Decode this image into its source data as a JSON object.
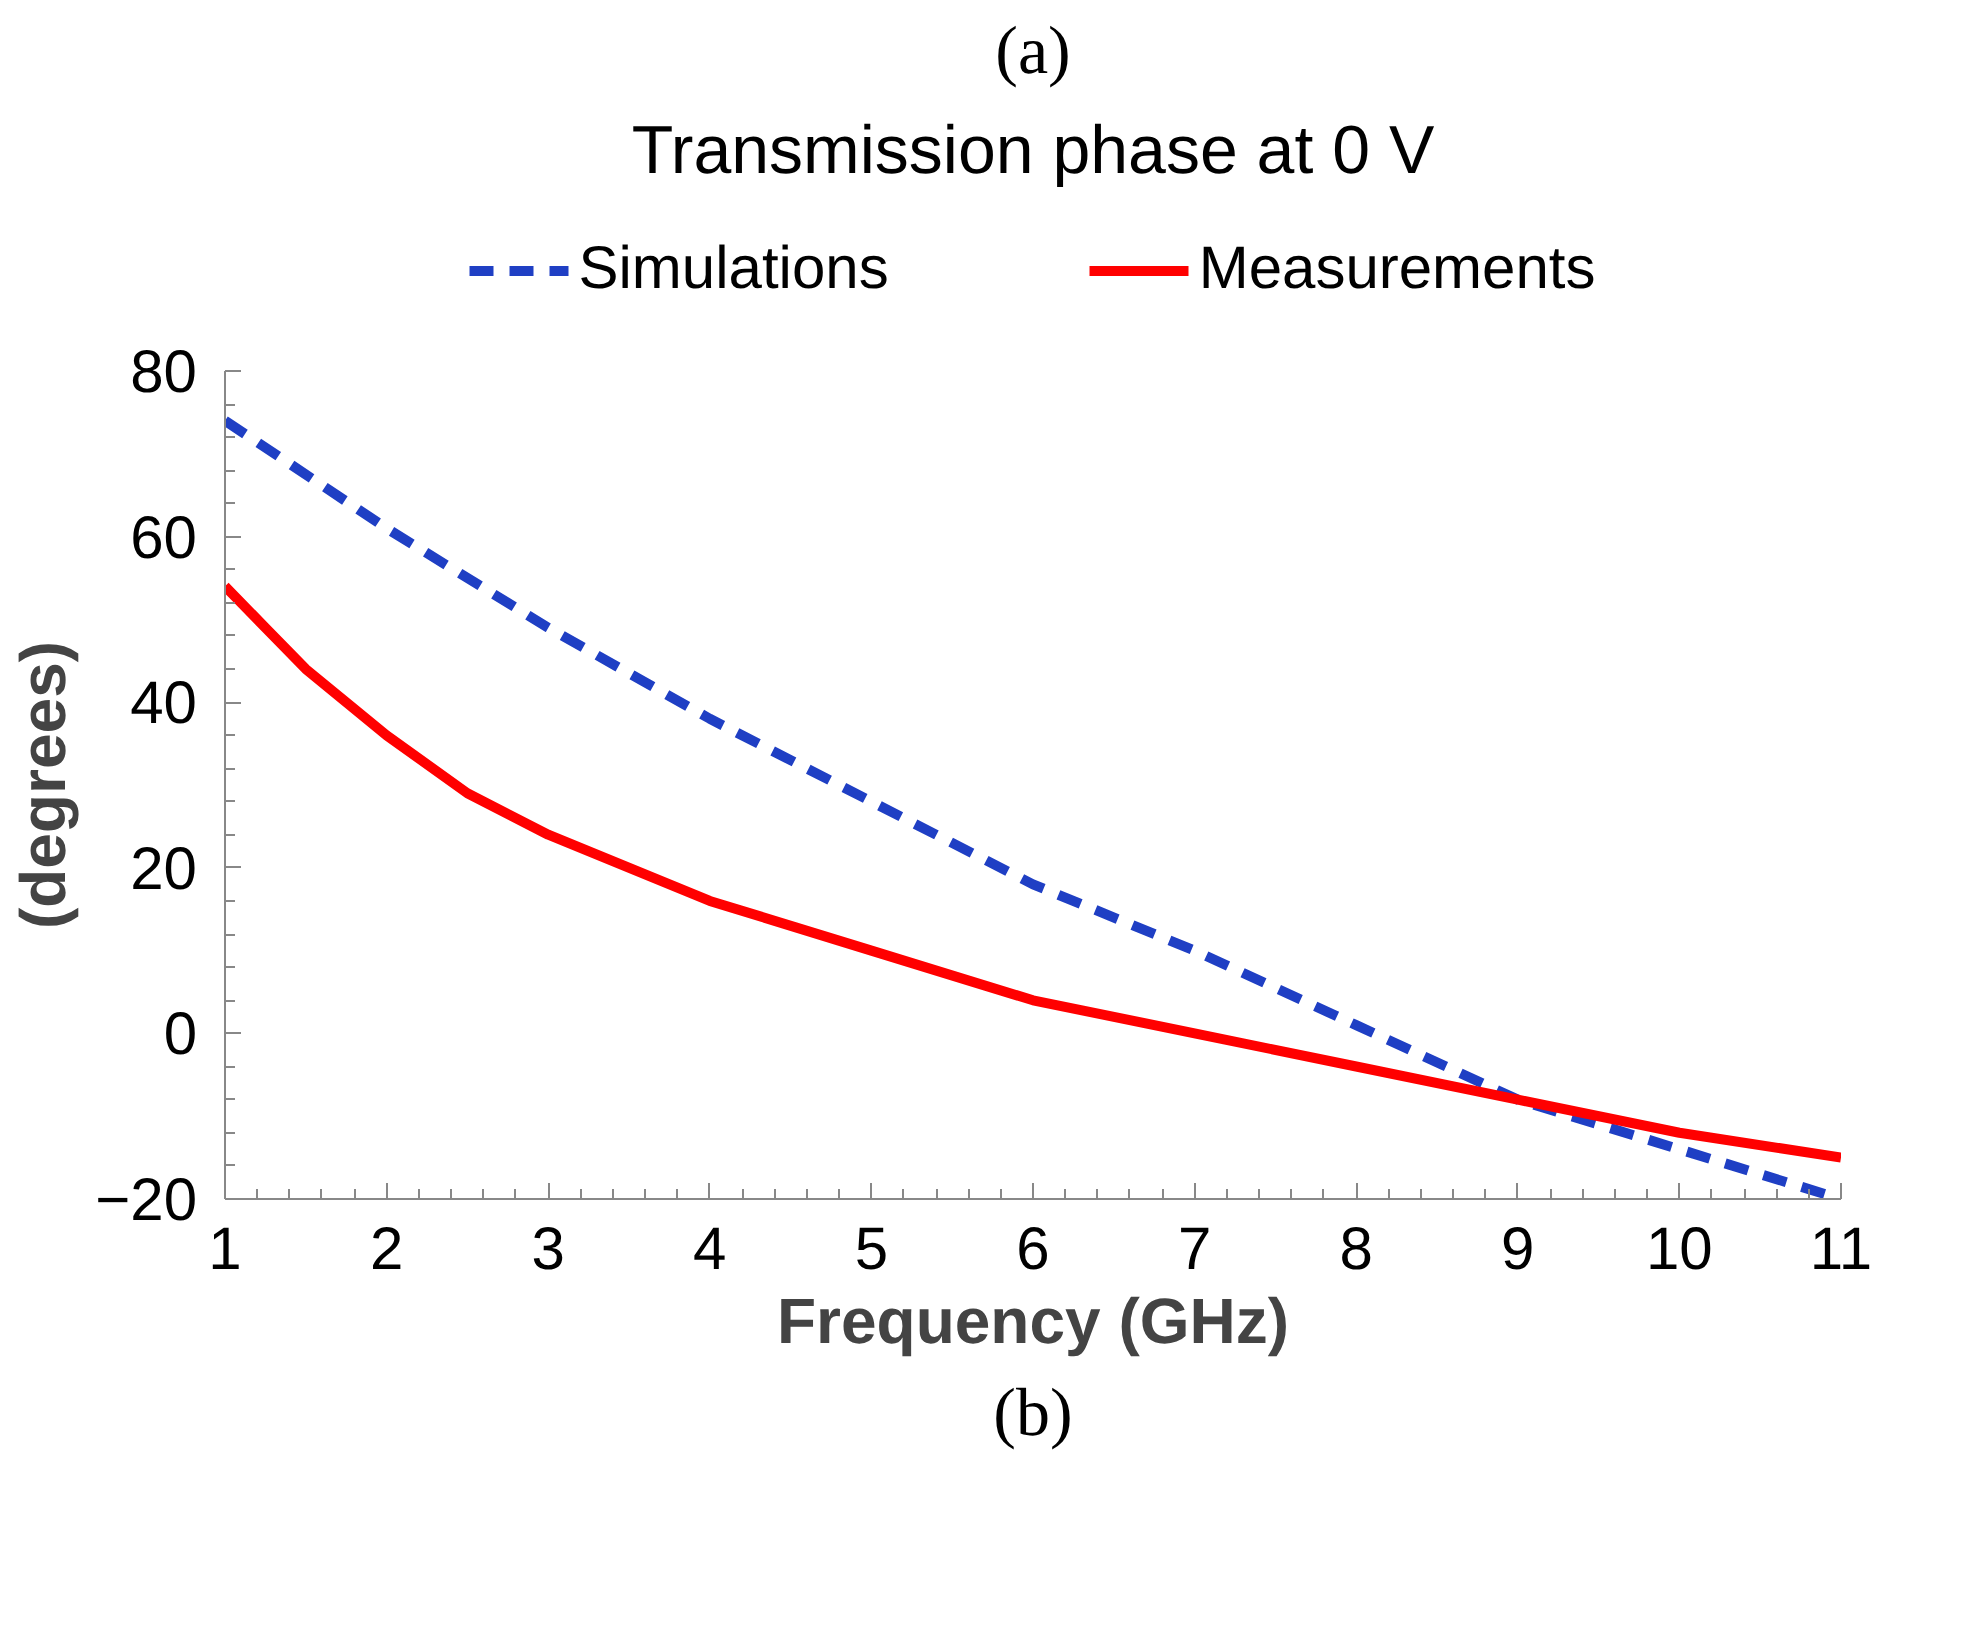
{
  "chart_data": {
    "type": "line",
    "title": "Transmission phase at 0 V",
    "xlabel": "Frequency (GHz)",
    "ylabel": "(degrees)",
    "annotations": [
      "(a)",
      "(b)"
    ],
    "series": [
      {
        "name": "Simulations",
        "color": "#1f3fc4",
        "line_style": "dashed",
        "x": [
          1,
          2,
          3,
          4,
          5,
          6,
          7,
          8,
          9,
          10,
          11
        ],
        "values": [
          74,
          61,
          49,
          38,
          28,
          18,
          10,
          1,
          -8,
          -14,
          -20
        ]
      },
      {
        "name": "Measurements",
        "color": "#ff0000",
        "line_style": "solid",
        "x": [
          1,
          1.25,
          1.5,
          2,
          2.5,
          3,
          4,
          5,
          6,
          7,
          8,
          9,
          10,
          11
        ],
        "values": [
          54,
          49,
          44,
          36,
          29,
          24,
          16,
          10,
          4,
          0,
          -4,
          -8,
          -12,
          -15
        ]
      }
    ],
    "xlim": [
      1,
      11
    ],
    "xticks": [
      1,
      2,
      3,
      4,
      5,
      6,
      7,
      8,
      9,
      10,
      11
    ],
    "ylim": [
      -20,
      80
    ],
    "yticks": [
      -20,
      0,
      20,
      40,
      60,
      80
    ],
    "grid": false,
    "legend": "top",
    "marker": "none"
  }
}
